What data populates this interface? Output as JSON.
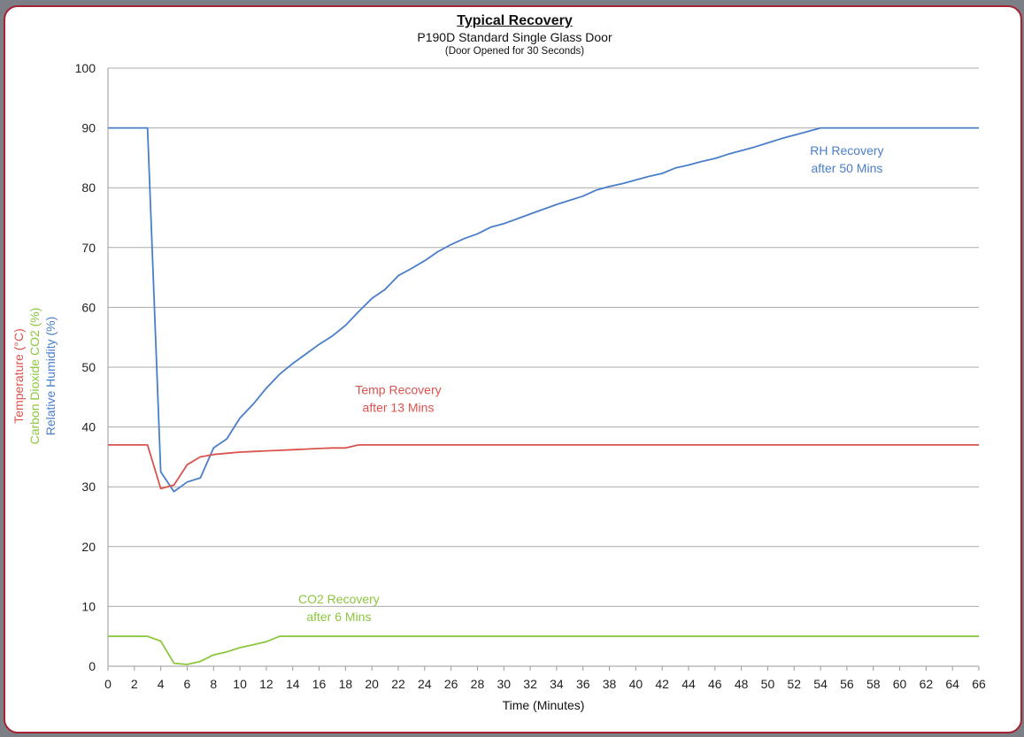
{
  "chart_data": {
    "type": "line",
    "title": "Typical Recovery",
    "subtitle": "P190D Standard Single Glass Door",
    "subtitle2": "(Door Opened for 30 Seconds)",
    "xlabel": "Time (Minutes)",
    "ylabel_lines": [
      {
        "text": "Temperature (°C)",
        "color": "#d9534f"
      },
      {
        "text": "Carbon Dioxide CO2 (%)",
        "color": "#8cc63f"
      },
      {
        "text": "Relative Humidity (%)",
        "color": "#4a7ec9"
      }
    ],
    "xlim": [
      0,
      66
    ],
    "ylim": [
      0,
      100
    ],
    "x_ticks": [
      0,
      2,
      4,
      6,
      8,
      10,
      12,
      14,
      16,
      18,
      20,
      22,
      24,
      26,
      28,
      30,
      32,
      34,
      36,
      38,
      40,
      42,
      44,
      46,
      48,
      50,
      52,
      54,
      56,
      58,
      60,
      62,
      64,
      66
    ],
    "y_ticks": [
      0,
      10,
      20,
      30,
      40,
      50,
      60,
      70,
      80,
      90,
      100
    ],
    "grid": "horizontal",
    "series": [
      {
        "name": "Relative Humidity",
        "color": "#4a7ec9",
        "points": [
          [
            0,
            90
          ],
          [
            3,
            90
          ],
          [
            4,
            32.5
          ],
          [
            5,
            29.2
          ],
          [
            6,
            30.8
          ],
          [
            7,
            31.5
          ],
          [
            8,
            36.5
          ],
          [
            9,
            38
          ],
          [
            10,
            41.5
          ],
          [
            11,
            43.8
          ],
          [
            12,
            46.5
          ],
          [
            13,
            48.8
          ],
          [
            14,
            50.6
          ],
          [
            15,
            52.2
          ],
          [
            16,
            53.8
          ],
          [
            17,
            55.2
          ],
          [
            18,
            57
          ],
          [
            19,
            59.3
          ],
          [
            20,
            61.5
          ],
          [
            21,
            63
          ],
          [
            22,
            65.3
          ],
          [
            23,
            66.5
          ],
          [
            24,
            67.8
          ],
          [
            25,
            69.3
          ],
          [
            26,
            70.5
          ],
          [
            27,
            71.5
          ],
          [
            28,
            72.3
          ],
          [
            29,
            73.4
          ],
          [
            30,
            74
          ],
          [
            31,
            74.8
          ],
          [
            32,
            75.6
          ],
          [
            33,
            76.4
          ],
          [
            34,
            77.2
          ],
          [
            35,
            77.9
          ],
          [
            36,
            78.6
          ],
          [
            37,
            79.6
          ],
          [
            38,
            80.2
          ],
          [
            39,
            80.7
          ],
          [
            40,
            81.3
          ],
          [
            41,
            81.9
          ],
          [
            42,
            82.4
          ],
          [
            43,
            83.3
          ],
          [
            44,
            83.8
          ],
          [
            45,
            84.4
          ],
          [
            46,
            84.9
          ],
          [
            47,
            85.6
          ],
          [
            48,
            86.2
          ],
          [
            49,
            86.8
          ],
          [
            50,
            87.5
          ],
          [
            51,
            88.2
          ],
          [
            52,
            88.8
          ],
          [
            53,
            89.4
          ],
          [
            54,
            90
          ],
          [
            66,
            90
          ]
        ]
      },
      {
        "name": "Temperature",
        "color": "#d9534f",
        "points": [
          [
            0,
            37
          ],
          [
            3,
            37
          ],
          [
            4,
            29.7
          ],
          [
            5,
            30.3
          ],
          [
            6,
            33.7
          ],
          [
            7,
            35
          ],
          [
            8,
            35.4
          ],
          [
            9,
            35.6
          ],
          [
            10,
            35.8
          ],
          [
            11,
            35.9
          ],
          [
            12,
            36
          ],
          [
            13,
            36.1
          ],
          [
            14,
            36.2
          ],
          [
            15,
            36.3
          ],
          [
            16,
            36.4
          ],
          [
            17,
            36.5
          ],
          [
            18,
            36.5
          ],
          [
            19,
            37
          ],
          [
            66,
            37
          ]
        ]
      },
      {
        "name": "CO2",
        "color": "#8cc63f",
        "points": [
          [
            0,
            5
          ],
          [
            3,
            5
          ],
          [
            4,
            4.2
          ],
          [
            5,
            0.5
          ],
          [
            6,
            0.3
          ],
          [
            7,
            0.8
          ],
          [
            8,
            1.9
          ],
          [
            9,
            2.4
          ],
          [
            10,
            3.1
          ],
          [
            11,
            3.6
          ],
          [
            12,
            4.1
          ],
          [
            13,
            5
          ],
          [
            66,
            5
          ]
        ]
      }
    ],
    "annotations": [
      {
        "line1": "RH Recovery",
        "line2": "after 50 Mins",
        "color": "#4a7ec9",
        "x": 56,
        "y": 85.5
      },
      {
        "line1": "Temp Recovery",
        "line2": "after 13 Mins",
        "color": "#d9534f",
        "x": 22,
        "y": 45.5
      },
      {
        "line1": "CO2 Recovery",
        "line2": "after 6 Mins",
        "color": "#8cc63f",
        "x": 17.5,
        "y": 10.5
      }
    ]
  }
}
